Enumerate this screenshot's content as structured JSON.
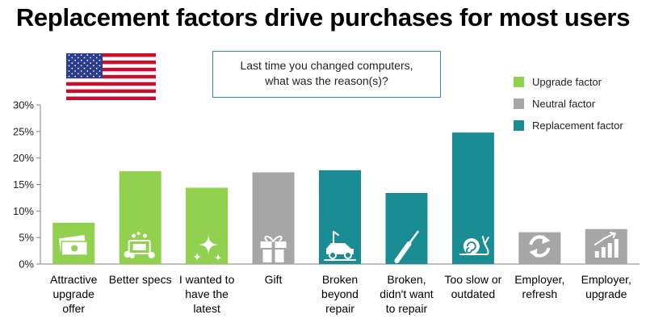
{
  "title": "Replacement factors drive purchases for most users",
  "question": {
    "line1": "Last time you changed computers,",
    "line2": "what was the reason(s)?"
  },
  "legend": [
    {
      "label": "Upgrade factor",
      "color": "#92d050"
    },
    {
      "label": "Neutral factor",
      "color": "#a6a6a6"
    },
    {
      "label": "Replacement factor",
      "color": "#1a8c94"
    }
  ],
  "colors": {
    "upgrade": "#92d050",
    "neutral": "#a6a6a6",
    "replacement": "#1a8c94",
    "flag_red": "#c8102e",
    "flag_blue": "#2a3d8f"
  },
  "chart_data": {
    "type": "bar",
    "title": "Replacement factors drive purchases for most users",
    "ylim": [
      0,
      30
    ],
    "yticks": [
      0,
      5,
      10,
      15,
      20,
      25,
      30
    ],
    "ytick_labels": [
      "0%",
      "5%",
      "10%",
      "15%",
      "20%",
      "25%",
      "30%"
    ],
    "xlabel": "",
    "ylabel": "",
    "categories": [
      [
        "Attractive",
        "upgrade",
        "offer"
      ],
      [
        "Better specs"
      ],
      [
        "I wanted to",
        "have the",
        "latest"
      ],
      [
        "Gift"
      ],
      [
        "Broken",
        "beyond",
        "repair"
      ],
      [
        "Broken,",
        "didn't want",
        "to repair"
      ],
      [
        "Too slow or",
        "outdated"
      ],
      [
        "Employer,",
        "refresh"
      ],
      [
        "Employer,",
        "upgrade"
      ]
    ],
    "values": [
      7.8,
      17.5,
      14.4,
      17.3,
      17.7,
      13.4,
      24.8,
      6.0,
      6.6
    ],
    "factor": [
      "upgrade",
      "upgrade",
      "upgrade",
      "neutral",
      "replacement",
      "replacement",
      "replacement",
      "neutral",
      "neutral"
    ],
    "icons": [
      "money-icon",
      "laptop-sparkle-icon",
      "sparkle-icon",
      "gift-icon",
      "broken-car-icon",
      "screwdriver-icon",
      "snail-icon",
      "refresh-icon",
      "growth-chart-icon"
    ]
  }
}
